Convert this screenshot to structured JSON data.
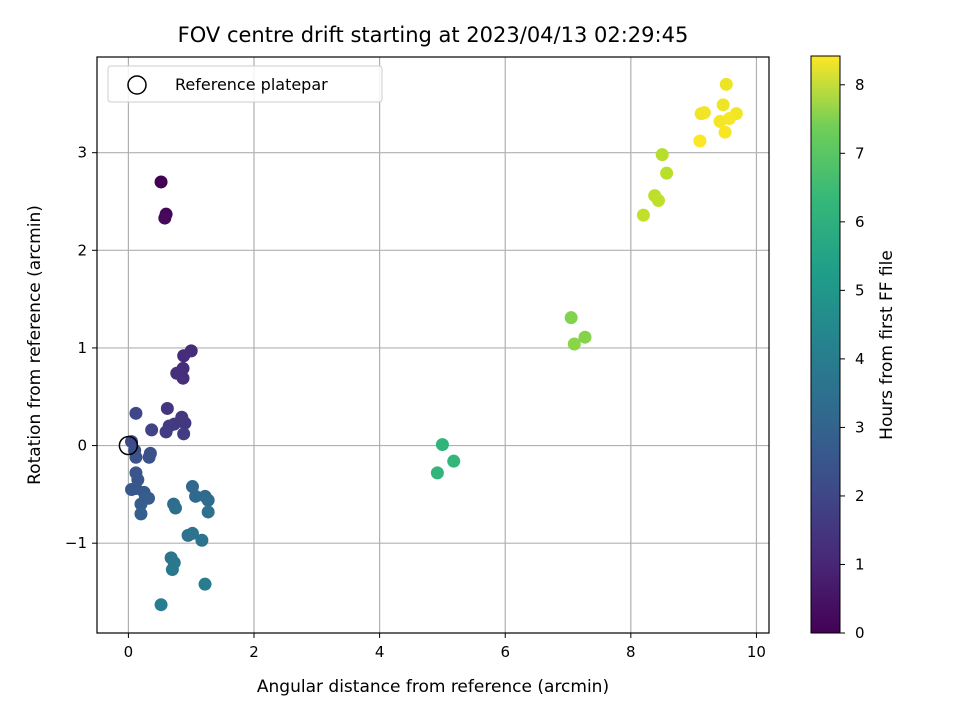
{
  "chart_data": {
    "type": "scatter",
    "title": "FOV centre drift starting at 2023/04/13 02:29:45",
    "xlabel": "Angular distance from reference (arcmin)",
    "ylabel": "Rotation from reference (arcmin)",
    "xlim": [
      -0.5,
      10.2
    ],
    "ylim": [
      -1.92,
      3.98
    ],
    "xticks": [
      0,
      2,
      4,
      6,
      8,
      10
    ],
    "xtick_labels": [
      "0",
      "2",
      "4",
      "6",
      "8",
      "10"
    ],
    "yticks": [
      -1,
      0,
      1,
      2,
      3
    ],
    "ytick_labels": [
      "−1",
      "0",
      "1",
      "2",
      "3"
    ],
    "grid": true,
    "legend": {
      "placement": "top-left",
      "entries": [
        "Reference platepar"
      ]
    },
    "colorbar": {
      "label": "Hours from first FF file",
      "range": [
        0,
        8.42
      ],
      "ticks": [
        0,
        1,
        2,
        3,
        4,
        5,
        6,
        7,
        8
      ],
      "tick_labels": [
        "0",
        "1",
        "2",
        "3",
        "4",
        "5",
        "6",
        "7",
        "8"
      ],
      "colormap": "viridis"
    },
    "reference_point": {
      "x": 0,
      "y": 0
    },
    "points": [
      {
        "x": 0.52,
        "y": 2.7,
        "t": 0.0
      },
      {
        "x": 0.6,
        "y": 2.37,
        "t": 0.12
      },
      {
        "x": 0.58,
        "y": 2.33,
        "t": 0.22
      },
      {
        "x": 1.0,
        "y": 0.97,
        "t": 1.05
      },
      {
        "x": 0.88,
        "y": 0.92,
        "t": 1.08
      },
      {
        "x": 0.87,
        "y": 0.79,
        "t": 1.1
      },
      {
        "x": 0.77,
        "y": 0.74,
        "t": 1.12
      },
      {
        "x": 0.87,
        "y": 0.69,
        "t": 1.15
      },
      {
        "x": 0.62,
        "y": 0.38,
        "t": 1.3
      },
      {
        "x": 0.85,
        "y": 0.29,
        "t": 1.35
      },
      {
        "x": 0.9,
        "y": 0.23,
        "t": 1.38
      },
      {
        "x": 0.73,
        "y": 0.22,
        "t": 1.4
      },
      {
        "x": 0.65,
        "y": 0.2,
        "t": 1.45
      },
      {
        "x": 0.6,
        "y": 0.14,
        "t": 1.5
      },
      {
        "x": 0.88,
        "y": 0.12,
        "t": 1.52
      },
      {
        "x": 0.37,
        "y": 0.16,
        "t": 1.7
      },
      {
        "x": 0.12,
        "y": 0.33,
        "t": 1.8
      },
      {
        "x": 0.05,
        "y": 0.04,
        "t": 1.9
      },
      {
        "x": 0.1,
        "y": -0.05,
        "t": 2.0
      },
      {
        "x": 0.35,
        "y": -0.08,
        "t": 2.05
      },
      {
        "x": 0.33,
        "y": -0.12,
        "t": 2.1
      },
      {
        "x": 0.12,
        "y": -0.12,
        "t": 2.12
      },
      {
        "x": 0.12,
        "y": -0.28,
        "t": 2.2
      },
      {
        "x": 0.15,
        "y": -0.35,
        "t": 2.25
      },
      {
        "x": 0.05,
        "y": -0.45,
        "t": 2.3
      },
      {
        "x": 0.12,
        "y": -0.44,
        "t": 2.32
      },
      {
        "x": 0.25,
        "y": -0.48,
        "t": 2.35
      },
      {
        "x": 0.32,
        "y": -0.54,
        "t": 2.4
      },
      {
        "x": 0.27,
        "y": -0.54,
        "t": 2.45
      },
      {
        "x": 0.2,
        "y": -0.6,
        "t": 2.5
      },
      {
        "x": 0.2,
        "y": -0.7,
        "t": 2.55
      },
      {
        "x": 1.02,
        "y": -0.42,
        "t": 2.8
      },
      {
        "x": 1.07,
        "y": -0.52,
        "t": 2.85
      },
      {
        "x": 1.22,
        "y": -0.52,
        "t": 2.9
      },
      {
        "x": 1.27,
        "y": -0.56,
        "t": 2.95
      },
      {
        "x": 0.72,
        "y": -0.6,
        "t": 3.0
      },
      {
        "x": 0.75,
        "y": -0.64,
        "t": 3.05
      },
      {
        "x": 1.27,
        "y": -0.68,
        "t": 3.1
      },
      {
        "x": 0.95,
        "y": -0.92,
        "t": 3.15
      },
      {
        "x": 1.02,
        "y": -0.9,
        "t": 3.2
      },
      {
        "x": 1.17,
        "y": -0.97,
        "t": 3.25
      },
      {
        "x": 0.68,
        "y": -1.15,
        "t": 3.3
      },
      {
        "x": 0.73,
        "y": -1.2,
        "t": 3.35
      },
      {
        "x": 0.7,
        "y": -1.27,
        "t": 3.4
      },
      {
        "x": 1.22,
        "y": -1.42,
        "t": 3.5
      },
      {
        "x": 0.52,
        "y": -1.63,
        "t": 3.6
      },
      {
        "x": 5.0,
        "y": 0.01,
        "t": 5.45
      },
      {
        "x": 4.92,
        "y": -0.28,
        "t": 5.5
      },
      {
        "x": 5.18,
        "y": -0.16,
        "t": 5.55
      },
      {
        "x": 7.05,
        "y": 1.31,
        "t": 6.8
      },
      {
        "x": 7.27,
        "y": 1.11,
        "t": 6.85
      },
      {
        "x": 7.1,
        "y": 1.04,
        "t": 6.9
      },
      {
        "x": 8.5,
        "y": 2.98,
        "t": 7.5
      },
      {
        "x": 8.57,
        "y": 2.79,
        "t": 7.55
      },
      {
        "x": 8.38,
        "y": 2.56,
        "t": 7.6
      },
      {
        "x": 8.44,
        "y": 2.51,
        "t": 7.62
      },
      {
        "x": 8.2,
        "y": 2.36,
        "t": 7.65
      },
      {
        "x": 9.52,
        "y": 3.7,
        "t": 8.2
      },
      {
        "x": 9.47,
        "y": 3.49,
        "t": 8.22
      },
      {
        "x": 9.12,
        "y": 3.4,
        "t": 8.24
      },
      {
        "x": 9.17,
        "y": 3.41,
        "t": 8.25
      },
      {
        "x": 9.68,
        "y": 3.4,
        "t": 8.27
      },
      {
        "x": 9.42,
        "y": 3.32,
        "t": 8.3
      },
      {
        "x": 9.57,
        "y": 3.35,
        "t": 8.32
      },
      {
        "x": 9.5,
        "y": 3.21,
        "t": 8.35
      },
      {
        "x": 9.1,
        "y": 3.12,
        "t": 8.4
      }
    ]
  }
}
